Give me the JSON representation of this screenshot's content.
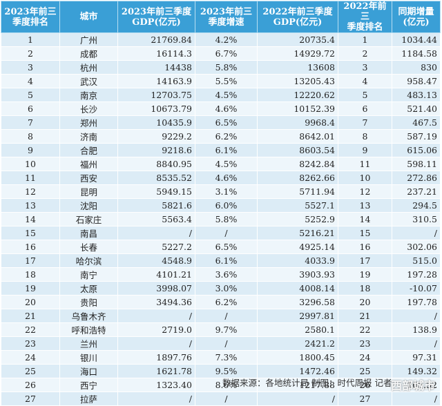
{
  "header": [
    "2023年前三\n季度排名",
    "城市",
    "2023年前三季度\nGDP(亿元)",
    "2023年前三\n季度增速",
    "2022年前三季度\nGDP(亿元)",
    "2022年前三\n季度排名",
    "同期增量\n(亿元)"
  ],
  "rows": [
    [
      "1",
      "广州",
      "21769.84",
      "4.2%",
      "20735.4",
      "1",
      "1034.44"
    ],
    [
      "2",
      "成都",
      "16114.3",
      "6.7%",
      "14929.72",
      "2",
      "1184.58"
    ],
    [
      "3",
      "杭州",
      "14438",
      "5.8%",
      "13608",
      "3",
      "830"
    ],
    [
      "4",
      "武汉",
      "14163.9",
      "5.5%",
      "13205.43",
      "4",
      "958.47"
    ],
    [
      "5",
      "南京",
      "12703.75",
      "4.5%",
      "12220.62",
      "5",
      "483.13"
    ],
    [
      "6",
      "长沙",
      "10673.79",
      "4.6%",
      "10152.39",
      "6",
      "521.40"
    ],
    [
      "7",
      "郑州",
      "10435.9",
      "6.5%",
      "9968.4",
      "7",
      "467.5"
    ],
    [
      "8",
      "济南",
      "9229.2",
      "6.2%",
      "8642.01",
      "8",
      "587.19"
    ],
    [
      "9",
      "合肥",
      "9218.6",
      "6.1%",
      "8603.54",
      "9",
      "615.06"
    ],
    [
      "10",
      "福州",
      "8840.95",
      "4.5%",
      "8242.84",
      "11",
      "598.11"
    ],
    [
      "11",
      "西安",
      "8535.52",
      "4.6%",
      "8262.66",
      "10",
      "272.86"
    ],
    [
      "12",
      "昆明",
      "5949.15",
      "3.1%",
      "5711.94",
      "12",
      "237.21"
    ],
    [
      "13",
      "沈阳",
      "5821.6",
      "6.0%",
      "5527.1",
      "13",
      "294.5"
    ],
    [
      "14",
      "石家庄",
      "5563.4",
      "5.8%",
      "5252.9",
      "14",
      "310.5"
    ],
    [
      "15",
      "南昌",
      "/",
      "/",
      "5216.21",
      "15",
      "/"
    ],
    [
      "16",
      "长春",
      "5227.2",
      "6.5%",
      "4925.14",
      "16",
      "302.06"
    ],
    [
      "17",
      "哈尔滨",
      "4548.9",
      "6.1%",
      "4033.9",
      "17",
      "515.0"
    ],
    [
      "18",
      "南宁",
      "4101.21",
      "3.6%",
      "3903.93",
      "19",
      "197.28"
    ],
    [
      "19",
      "太原",
      "3998.07",
      "3.0%",
      "4008.14",
      "18",
      "-10.07"
    ],
    [
      "20",
      "贵阳",
      "3494.36",
      "6.2%",
      "3296.58",
      "20",
      "197.78"
    ],
    [
      "21",
      "乌鲁木齐",
      "/",
      "/",
      "2997.81",
      "21",
      "/"
    ],
    [
      "22",
      "呼和浩特",
      "2719.0",
      "9.7%",
      "2580.1",
      "22",
      "138.9"
    ],
    [
      "23",
      "兰州",
      "/",
      "/",
      "2421.2",
      "23",
      "/"
    ],
    [
      "24",
      "银川",
      "1897.76",
      "7.3%",
      "1800.45",
      "24",
      "97.31"
    ],
    [
      "25",
      "海口",
      "1621.78",
      "9.5%",
      "1472.46",
      "25",
      "149.32"
    ],
    [
      "26",
      "西宁",
      "1323.40",
      "8.6%",
      "1217.88",
      "26",
      "105.52"
    ],
    [
      "27",
      "拉萨",
      "/",
      "/",
      "/",
      "27",
      "/"
    ]
  ],
  "footer": "数据来源：各地统计局  制图：时代周报  记者",
  "watermark": "西部城市",
  "colors": {
    "header_bg": "#3a9fd6",
    "row_odd": "#dcecf6",
    "row_even": "#eef6fb"
  }
}
